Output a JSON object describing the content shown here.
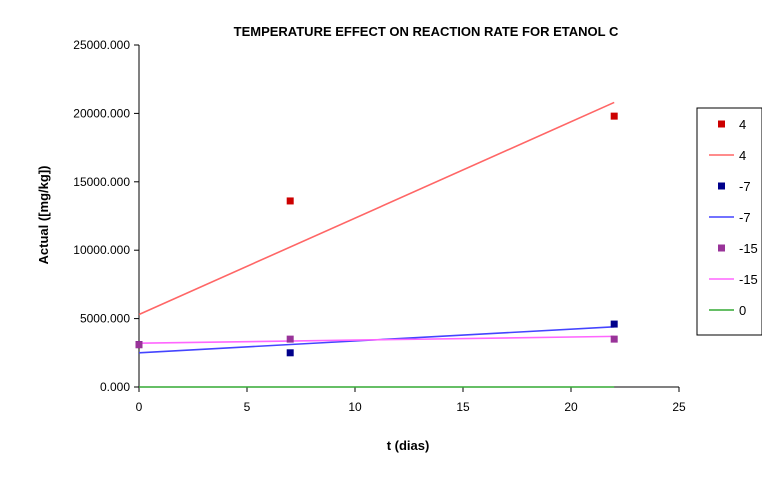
{
  "chart_data": {
    "type": "scatter",
    "title": "TEMPERATURE EFFECT ON REACTION RATE FOR  ETANOL C",
    "xlabel": "t (dias)",
    "ylabel": "Actual ([mg/kg])",
    "xlim": [
      0,
      25
    ],
    "ylim": [
      0,
      25000
    ],
    "x_ticks": [
      "0",
      "5",
      "10",
      "15",
      "20",
      "25"
    ],
    "y_ticks": [
      "0.000",
      "5000.000",
      "10000.000",
      "15000.000",
      "20000.000",
      "25000.000"
    ],
    "x_tick_values": [
      0,
      5,
      10,
      15,
      20,
      25
    ],
    "y_tick_values": [
      0,
      5000,
      10000,
      15000,
      20000,
      25000
    ],
    "grid": false,
    "legend_position": "right",
    "series": [
      {
        "name": "4",
        "kind": "points",
        "color": "#cc0000",
        "x": [
          0,
          7,
          22
        ],
        "y": [
          3100,
          13600,
          19800
        ]
      },
      {
        "name": "4",
        "kind": "line",
        "color": "#ff6666",
        "x": [
          0,
          22
        ],
        "y": [
          5300,
          20800
        ]
      },
      {
        "name": "-7",
        "kind": "points",
        "color": "#00008b",
        "x": [
          0,
          7,
          22
        ],
        "y": [
          3100,
          2500,
          4600
        ]
      },
      {
        "name": "-7",
        "kind": "line",
        "color": "#4444ff",
        "x": [
          0,
          22
        ],
        "y": [
          2500,
          4400
        ]
      },
      {
        "name": "-15",
        "kind": "points",
        "color": "#993399",
        "x": [
          0,
          7,
          22
        ],
        "y": [
          3100,
          3500,
          3500
        ]
      },
      {
        "name": "-15",
        "kind": "line",
        "color": "#ff66ff",
        "x": [
          0,
          22
        ],
        "y": [
          3200,
          3700
        ]
      },
      {
        "name": "0",
        "kind": "line",
        "color": "#33aa33",
        "x": [
          0,
          22
        ],
        "y": [
          0,
          0
        ]
      }
    ]
  }
}
